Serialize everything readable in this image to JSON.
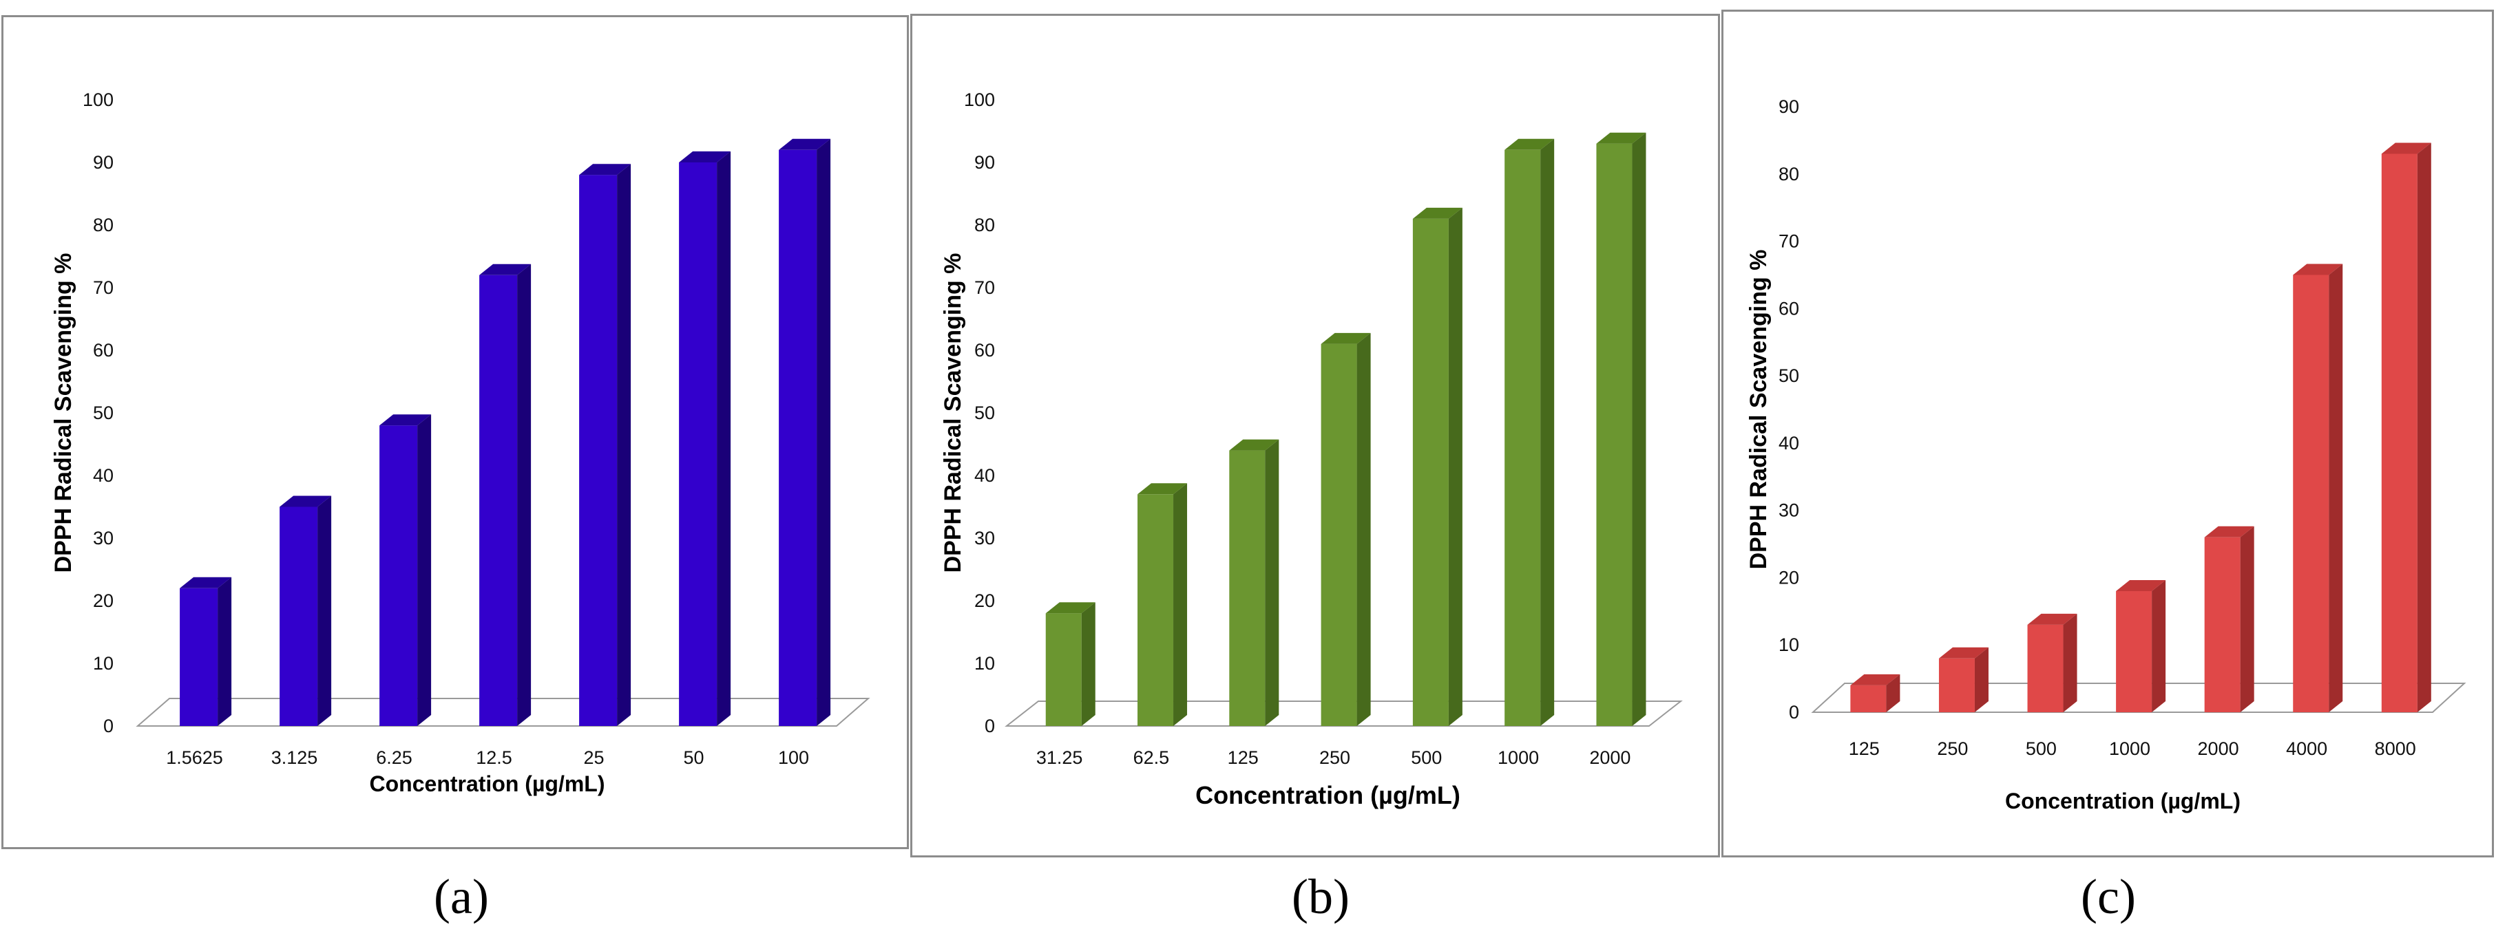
{
  "chart_data": [
    {
      "id": "a",
      "type": "bar",
      "panel_label": "(a)",
      "categories": [
        "1.5625",
        "3.125",
        "6.25",
        "12.5",
        "25",
        "50",
        "100"
      ],
      "values": [
        22,
        35,
        48,
        72,
        88,
        90,
        92
      ],
      "ylabel": "DPPH Radical Scavenging %",
      "xlabel": "Concentration (µg/mL)",
      "ylim": [
        0,
        100
      ],
      "yticks": [
        0,
        10,
        20,
        30,
        40,
        50,
        60,
        70,
        80,
        90,
        100
      ],
      "colors": {
        "front": "#3300CC",
        "side": "#1A0078",
        "top": "#220099"
      }
    },
    {
      "id": "b",
      "type": "bar",
      "panel_label": "(b)",
      "categories": [
        "31.25",
        "62.5",
        "125",
        "250",
        "500",
        "1000",
        "2000"
      ],
      "values": [
        18,
        37,
        44,
        61,
        81,
        92,
        93
      ],
      "ylabel": "DPPH Radical Scavenging %",
      "xlabel": "Concentration (µg/mL)",
      "ylim": [
        0,
        100
      ],
      "yticks": [
        0,
        10,
        20,
        30,
        40,
        50,
        60,
        70,
        80,
        90,
        100
      ],
      "colors": {
        "front": "#6B9630",
        "side": "#476A1C",
        "top": "#56801F"
      }
    },
    {
      "id": "c",
      "type": "bar",
      "panel_label": "(c)",
      "categories": [
        "125",
        "250",
        "500",
        "1000",
        "2000",
        "4000",
        "8000"
      ],
      "values": [
        4,
        8,
        13,
        18,
        26,
        65,
        83
      ],
      "ylabel": "DPPH Radical Scavenging %",
      "xlabel": "Concentration (µg/mL)",
      "ylim": [
        0,
        90
      ],
      "yticks": [
        0,
        10,
        20,
        30,
        40,
        50,
        60,
        70,
        80,
        90
      ],
      "colors": {
        "front": "#E04848",
        "side": "#A02C2C",
        "top": "#C23838"
      }
    }
  ]
}
